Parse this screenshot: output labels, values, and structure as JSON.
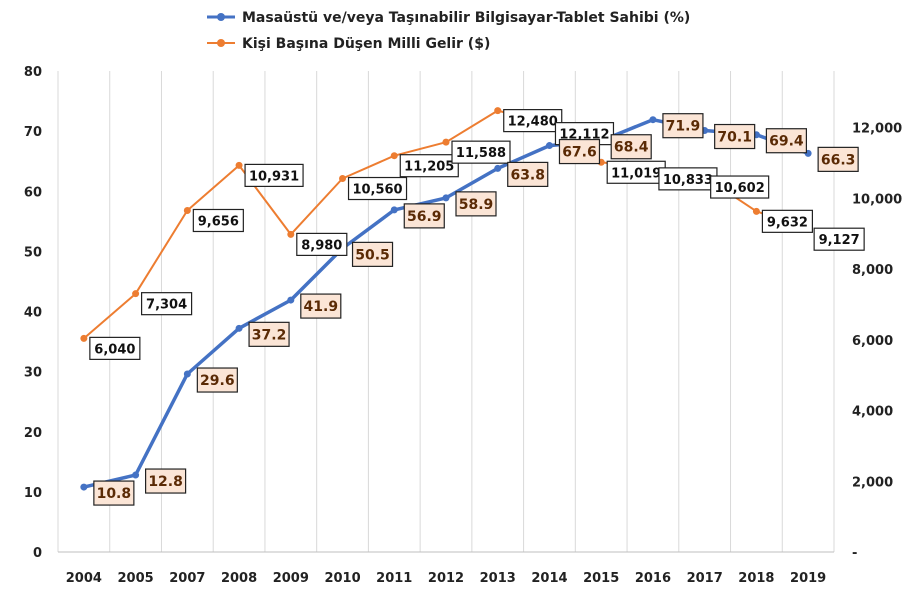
{
  "chart_data": {
    "type": "line",
    "categories": [
      "2004",
      "2005",
      "2007",
      "2008",
      "2009",
      "2010",
      "2011",
      "2012",
      "2013",
      "2014",
      "2015",
      "2016",
      "2017",
      "2018",
      "2019"
    ],
    "series": [
      {
        "name": "Masaüstü ve/veya Taşınabilir Bilgisayar-Tablet Sahibi (%)",
        "axis": "left",
        "color": "#4472c4",
        "values": [
          10.8,
          12.8,
          29.6,
          37.2,
          41.9,
          50.5,
          56.9,
          58.9,
          63.8,
          67.6,
          68.4,
          71.9,
          70.1,
          69.4,
          66.3
        ],
        "labels": [
          "10.8",
          "12.8",
          "29.6",
          "37.2",
          "41.9",
          "50.5",
          "56.9",
          "58.9",
          "63.8",
          "67.6",
          "68.4",
          "71.9",
          "70.1",
          "69.4",
          "66.3"
        ]
      },
      {
        "name": "Kişi Başına Düşen Milli Gelir ($)",
        "axis": "right",
        "color": "#ed7d31",
        "values": [
          6040,
          7304,
          9656,
          10931,
          8980,
          10560,
          11205,
          11588,
          12480,
          12112,
          11019,
          10833,
          10602,
          9632,
          9127
        ],
        "labels": [
          "6,040",
          "7,304",
          "9,656",
          "10,931",
          "8,980",
          "10,560",
          "11,205",
          "11,588",
          "12,480",
          "12,112",
          "11,019",
          "10,833",
          "10,602",
          "9,632",
          "9,127"
        ]
      }
    ],
    "y_left": {
      "ylim": [
        0,
        80
      ],
      "ticks": [
        "0",
        "10",
        "20",
        "30",
        "40",
        "50",
        "60",
        "70",
        "80"
      ]
    },
    "y_right": {
      "ylim": [
        0,
        13600
      ],
      "tick_values": [
        0,
        2000,
        4000,
        6000,
        8000,
        10000,
        12000
      ],
      "ticks": [
        "-",
        "2,000",
        "4,000",
        "6,000",
        "8,000",
        "10,000",
        "12,000"
      ]
    },
    "grid": "vertical",
    "legend": "top-center",
    "title": "",
    "xlabel": "",
    "ylabel": ""
  }
}
